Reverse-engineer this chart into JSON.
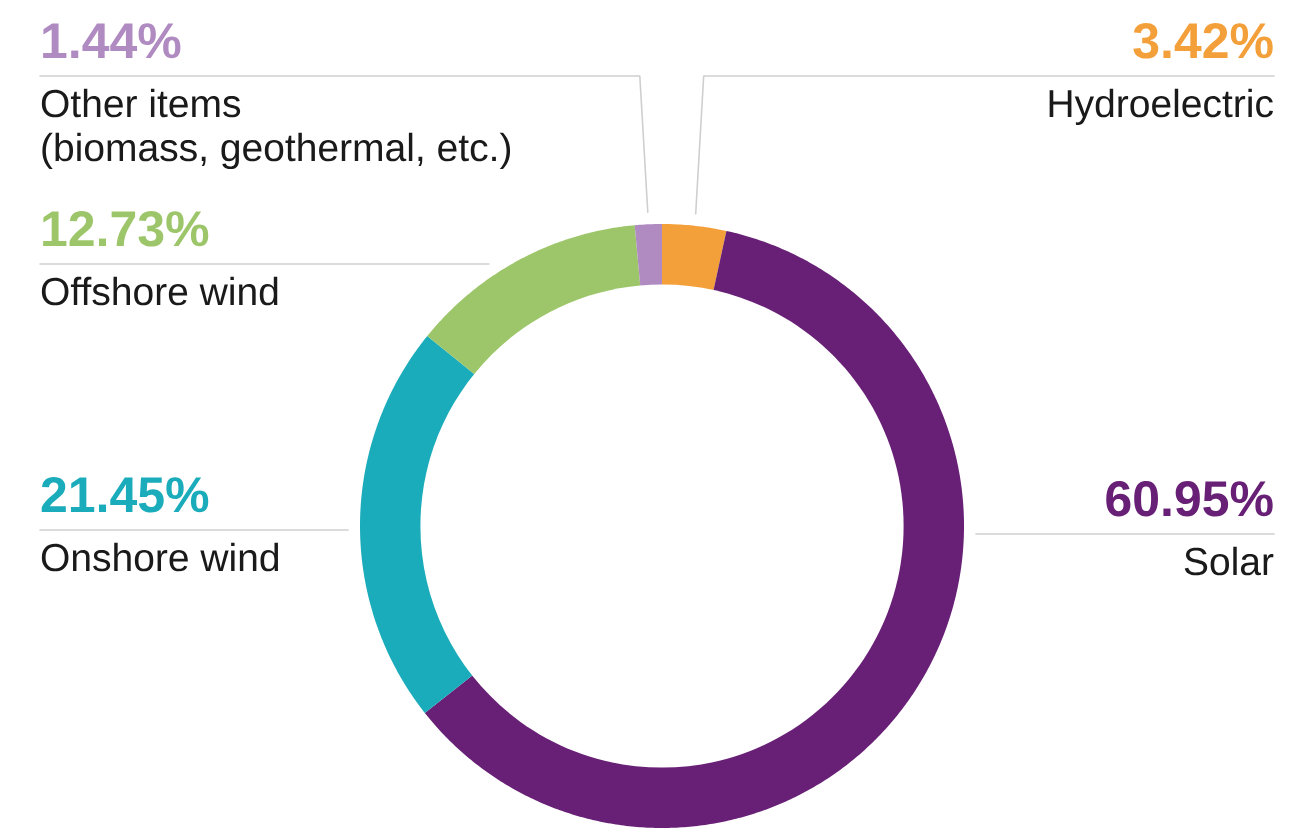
{
  "chart_data": {
    "type": "donut",
    "categories": [
      "Hydroelectric",
      "Solar",
      "Onshore wind",
      "Offshore wind",
      "Other items (biomass, geothermal, etc.)"
    ],
    "values": [
      3.42,
      60.95,
      21.45,
      12.73,
      1.44
    ],
    "colors": [
      "#f4a03a",
      "#681f76",
      "#1aacba",
      "#9dc66a",
      "#b08bc1"
    ],
    "value_labels": [
      "3.42%",
      "60.95%",
      "21.45%",
      "12.73%",
      "1.44%"
    ]
  }
}
